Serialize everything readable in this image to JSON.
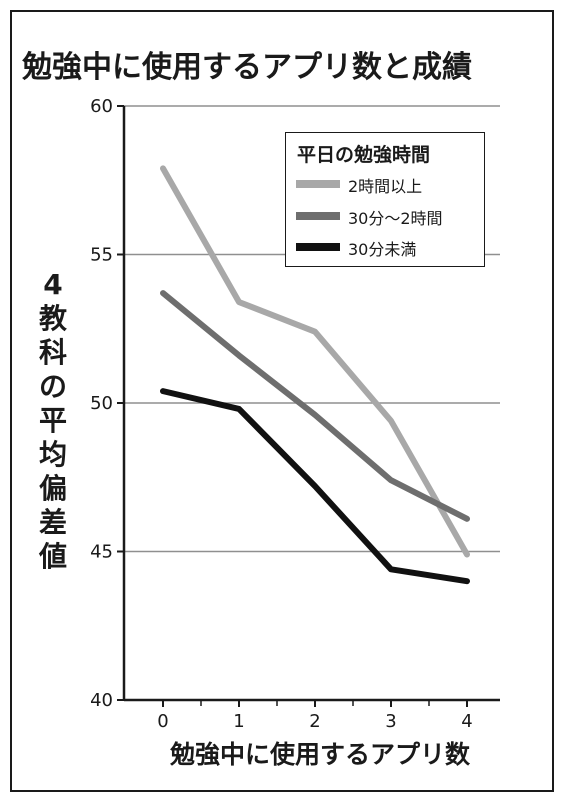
{
  "chart_data": {
    "type": "line",
    "title": "勉強中に使用するアプリ数と成績",
    "xlabel": "勉強中に使用するアプリ数",
    "ylabel": "4教科の平均偏差値",
    "x": [
      0,
      1,
      2,
      3,
      4
    ],
    "x_tick_labels": [
      "0",
      "1",
      "2",
      "3",
      "4"
    ],
    "ylim": [
      40,
      60
    ],
    "y_ticks": [
      40,
      45,
      50,
      55,
      60
    ],
    "y_tick_labels": [
      "40",
      "45",
      "50",
      "55",
      "60"
    ],
    "grid": true,
    "legend_title": "平日の勉強時間",
    "legend_position": "top-right",
    "series": [
      {
        "name": "2時間以上",
        "color": "#a8a8a8",
        "values": [
          57.9,
          53.4,
          52.4,
          49.4,
          44.9
        ]
      },
      {
        "name": "30分～2時間",
        "color": "#6e6e6e",
        "values": [
          53.7,
          51.6,
          49.6,
          47.4,
          46.1
        ]
      },
      {
        "name": "30分未満",
        "color": "#111111",
        "values": [
          50.4,
          49.8,
          47.2,
          44.4,
          44.0
        ]
      }
    ]
  }
}
